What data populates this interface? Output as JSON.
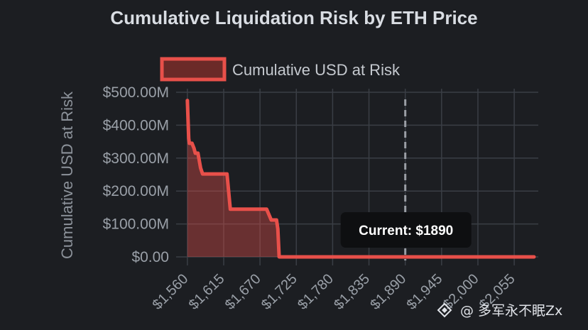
{
  "chart_data": {
    "type": "area",
    "title": "Cumulative Liquidation Risk by ETH Price",
    "legend": [
      "Cumulative USD at Risk"
    ],
    "legend_position": "top-center",
    "ylabel": "Cumulative USD at Risk",
    "xlabel": "",
    "x_ticks": [
      "$1,560",
      "$1,615",
      "$1,670",
      "$1,725",
      "$1,780",
      "$1,835",
      "$1,890",
      "$1,945",
      "$2,000",
      "$2,055"
    ],
    "y_ticks": [
      "$0.00",
      "$100.00M",
      "$200.00M",
      "$300.00M",
      "$400.00M",
      "$500.00M"
    ],
    "xlim": [
      1558,
      2085
    ],
    "ylim": [
      0,
      500
    ],
    "series": [
      {
        "name": "Cumulative USD at Risk",
        "unit": "M USD",
        "color": "#e8504a",
        "points": [
          [
            1560,
            475
          ],
          [
            1562,
            360
          ],
          [
            1563,
            345
          ],
          [
            1565,
            345
          ],
          [
            1567,
            345
          ],
          [
            1570,
            330
          ],
          [
            1572,
            315
          ],
          [
            1576,
            315
          ],
          [
            1580,
            270
          ],
          [
            1583,
            252
          ],
          [
            1600,
            252
          ],
          [
            1620,
            252
          ],
          [
            1625,
            145
          ],
          [
            1660,
            145
          ],
          [
            1680,
            145
          ],
          [
            1687,
            112
          ],
          [
            1695,
            112
          ],
          [
            1697,
            85
          ],
          [
            1699,
            0
          ],
          [
            2085,
            0
          ]
        ]
      }
    ],
    "current_price": 1890,
    "annotation": "Current: $1890"
  },
  "watermark": "多军永不眠Zx"
}
